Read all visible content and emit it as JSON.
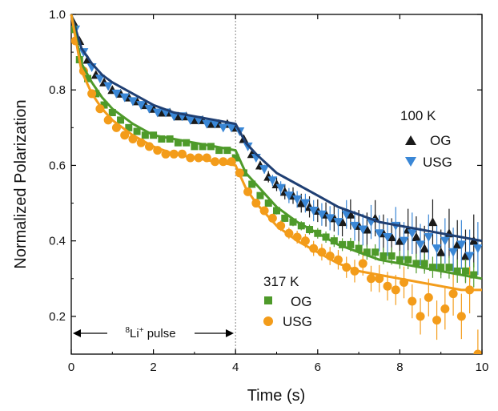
{
  "chart_data": {
    "type": "scatter",
    "xlabel": "Time (s)",
    "ylabel": "Normalized Polarization",
    "xlim": [
      0,
      10
    ],
    "ylim": [
      0.1,
      1.0
    ],
    "x_ticks": [
      "0",
      "2",
      "4",
      "6",
      "8",
      "10"
    ],
    "y_ticks": [
      "0.2",
      "0.4",
      "0.6",
      "0.8",
      "1.0"
    ],
    "grid": false,
    "pulse_end": 4,
    "pulse_label": "Li",
    "pulse_label_pre": "8",
    "pulse_label_sup": "+",
    "pulse_label_post": " pulse",
    "groups": [
      {
        "label": "100 K",
        "placement": "upper-right"
      },
      {
        "label": "317 K",
        "placement": "lower-middle"
      }
    ],
    "series": [
      {
        "name": "OG",
        "group": "100 K",
        "marker": "triangle-up",
        "color": "#1a1a1a",
        "x": [
          0.05,
          0.2,
          0.4,
          0.6,
          0.8,
          1.0,
          1.2,
          1.4,
          1.6,
          1.8,
          2.0,
          2.2,
          2.4,
          2.6,
          2.8,
          3.0,
          3.2,
          3.4,
          3.6,
          3.8,
          4.0,
          4.2,
          4.4,
          4.6,
          4.8,
          5.0,
          5.2,
          5.4,
          5.6,
          5.8,
          6.0,
          6.2,
          6.4,
          6.6,
          6.8,
          7.0,
          7.2,
          7.4,
          7.6,
          7.8,
          8.0,
          8.2,
          8.4,
          8.6,
          8.8,
          9.0,
          9.2,
          9.4,
          9.6,
          9.8
        ],
        "y": [
          0.98,
          0.93,
          0.88,
          0.84,
          0.82,
          0.8,
          0.79,
          0.78,
          0.77,
          0.76,
          0.75,
          0.74,
          0.74,
          0.73,
          0.73,
          0.72,
          0.72,
          0.71,
          0.71,
          0.71,
          0.7,
          0.67,
          0.63,
          0.6,
          0.57,
          0.55,
          0.53,
          0.52,
          0.5,
          0.49,
          0.48,
          0.47,
          0.46,
          0.45,
          0.47,
          0.44,
          0.43,
          0.46,
          0.42,
          0.41,
          0.4,
          0.43,
          0.41,
          0.38,
          0.45,
          0.37,
          0.42,
          0.39,
          0.36,
          0.4
        ],
        "err": [
          0.005,
          0.005,
          0.005,
          0.005,
          0.005,
          0.005,
          0.005,
          0.005,
          0.005,
          0.005,
          0.005,
          0.005,
          0.005,
          0.005,
          0.005,
          0.005,
          0.005,
          0.005,
          0.005,
          0.005,
          0.01,
          0.01,
          0.01,
          0.012,
          0.015,
          0.018,
          0.02,
          0.022,
          0.025,
          0.028,
          0.03,
          0.032,
          0.035,
          0.038,
          0.04,
          0.042,
          0.045,
          0.048,
          0.05,
          0.05,
          0.05,
          0.055,
          0.055,
          0.06,
          0.06,
          0.06,
          0.065,
          0.065,
          0.07,
          0.07
        ]
      },
      {
        "name": "USG",
        "group": "100 K",
        "marker": "triangle-down",
        "color": "#3a87d6",
        "x": [
          0.1,
          0.3,
          0.5,
          0.7,
          0.9,
          1.1,
          1.3,
          1.5,
          1.7,
          1.9,
          2.1,
          2.3,
          2.5,
          2.7,
          2.9,
          3.1,
          3.3,
          3.5,
          3.7,
          3.9,
          4.1,
          4.3,
          4.5,
          4.7,
          4.9,
          5.1,
          5.3,
          5.5,
          5.7,
          5.9,
          6.1,
          6.3,
          6.5,
          6.7,
          6.9,
          7.1,
          7.3,
          7.5,
          7.7,
          7.9,
          8.1,
          8.3,
          8.5,
          8.7,
          8.9,
          9.1,
          9.3,
          9.5,
          9.7,
          9.9
        ],
        "y": [
          0.96,
          0.9,
          0.86,
          0.83,
          0.81,
          0.79,
          0.78,
          0.77,
          0.76,
          0.75,
          0.74,
          0.74,
          0.73,
          0.73,
          0.72,
          0.72,
          0.71,
          0.71,
          0.7,
          0.7,
          0.69,
          0.65,
          0.62,
          0.59,
          0.56,
          0.54,
          0.52,
          0.51,
          0.5,
          0.48,
          0.47,
          0.46,
          0.45,
          0.47,
          0.44,
          0.43,
          0.45,
          0.42,
          0.41,
          0.44,
          0.4,
          0.42,
          0.39,
          0.41,
          0.38,
          0.4,
          0.37,
          0.39,
          0.36,
          0.38
        ],
        "err": [
          0.005,
          0.005,
          0.005,
          0.005,
          0.005,
          0.005,
          0.005,
          0.005,
          0.005,
          0.005,
          0.005,
          0.005,
          0.005,
          0.005,
          0.005,
          0.005,
          0.005,
          0.005,
          0.005,
          0.005,
          0.01,
          0.01,
          0.01,
          0.012,
          0.015,
          0.018,
          0.02,
          0.022,
          0.025,
          0.028,
          0.03,
          0.032,
          0.035,
          0.038,
          0.04,
          0.042,
          0.045,
          0.048,
          0.05,
          0.05,
          0.05,
          0.055,
          0.055,
          0.06,
          0.06,
          0.06,
          0.065,
          0.065,
          0.07,
          0.07
        ]
      },
      {
        "name": "OG",
        "group": "317 K",
        "marker": "square",
        "color": "#4e9a2a",
        "x": [
          0.05,
          0.2,
          0.4,
          0.6,
          0.8,
          1.0,
          1.2,
          1.4,
          1.6,
          1.8,
          2.0,
          2.2,
          2.4,
          2.6,
          2.8,
          3.0,
          3.2,
          3.4,
          3.6,
          3.8,
          4.0,
          4.2,
          4.4,
          4.6,
          4.8,
          5.0,
          5.2,
          5.4,
          5.6,
          5.8,
          6.0,
          6.2,
          6.4,
          6.6,
          6.8,
          7.0,
          7.2,
          7.4,
          7.6,
          7.8,
          8.0,
          8.2,
          8.4,
          8.6,
          8.8,
          9.0,
          9.2,
          9.4,
          9.6,
          9.8
        ],
        "y": [
          0.96,
          0.88,
          0.83,
          0.79,
          0.76,
          0.74,
          0.72,
          0.7,
          0.69,
          0.68,
          0.68,
          0.67,
          0.67,
          0.66,
          0.66,
          0.65,
          0.65,
          0.65,
          0.64,
          0.64,
          0.62,
          0.58,
          0.55,
          0.52,
          0.5,
          0.48,
          0.46,
          0.45,
          0.44,
          0.43,
          0.42,
          0.41,
          0.4,
          0.39,
          0.39,
          0.38,
          0.37,
          0.37,
          0.36,
          0.36,
          0.35,
          0.35,
          0.34,
          0.34,
          0.33,
          0.33,
          0.33,
          0.32,
          0.32,
          0.31
        ],
        "err": [
          0.004,
          0.004,
          0.004,
          0.004,
          0.004,
          0.004,
          0.004,
          0.004,
          0.004,
          0.004,
          0.004,
          0.004,
          0.004,
          0.004,
          0.004,
          0.004,
          0.004,
          0.004,
          0.004,
          0.004,
          0.006,
          0.006,
          0.007,
          0.008,
          0.009,
          0.01,
          0.01,
          0.011,
          0.012,
          0.013,
          0.014,
          0.015,
          0.016,
          0.017,
          0.018,
          0.019,
          0.02,
          0.021,
          0.022,
          0.023,
          0.024,
          0.025,
          0.026,
          0.027,
          0.028,
          0.029,
          0.03,
          0.031,
          0.032,
          0.033
        ]
      },
      {
        "name": "USG",
        "group": "317 K",
        "marker": "circle",
        "color": "#f39c1a",
        "x": [
          0.1,
          0.3,
          0.5,
          0.7,
          0.9,
          1.1,
          1.3,
          1.5,
          1.7,
          1.9,
          2.1,
          2.3,
          2.5,
          2.7,
          2.9,
          3.1,
          3.3,
          3.5,
          3.7,
          3.9,
          4.1,
          4.3,
          4.5,
          4.7,
          4.9,
          5.1,
          5.3,
          5.5,
          5.7,
          5.9,
          6.1,
          6.3,
          6.5,
          6.7,
          6.9,
          7.1,
          7.3,
          7.5,
          7.7,
          7.9,
          8.1,
          8.3,
          8.5,
          8.7,
          8.9,
          9.1,
          9.3,
          9.5,
          9.7,
          9.9
        ],
        "y": [
          0.93,
          0.85,
          0.79,
          0.75,
          0.72,
          0.7,
          0.68,
          0.67,
          0.66,
          0.65,
          0.64,
          0.63,
          0.63,
          0.63,
          0.62,
          0.62,
          0.62,
          0.61,
          0.61,
          0.61,
          0.58,
          0.53,
          0.5,
          0.48,
          0.46,
          0.44,
          0.42,
          0.41,
          0.4,
          0.38,
          0.37,
          0.36,
          0.35,
          0.33,
          0.32,
          0.34,
          0.3,
          0.3,
          0.28,
          0.27,
          0.29,
          0.24,
          0.2,
          0.25,
          0.19,
          0.22,
          0.26,
          0.2,
          0.27,
          0.1
        ],
        "err": [
          0.005,
          0.005,
          0.005,
          0.005,
          0.005,
          0.005,
          0.005,
          0.005,
          0.005,
          0.005,
          0.005,
          0.005,
          0.005,
          0.005,
          0.005,
          0.005,
          0.005,
          0.005,
          0.005,
          0.005,
          0.008,
          0.009,
          0.01,
          0.011,
          0.012,
          0.014,
          0.015,
          0.017,
          0.018,
          0.02,
          0.022,
          0.024,
          0.026,
          0.028,
          0.03,
          0.032,
          0.034,
          0.036,
          0.038,
          0.04,
          0.042,
          0.045,
          0.048,
          0.05,
          0.052,
          0.055,
          0.058,
          0.06,
          0.062,
          0.065
        ]
      }
    ],
    "fits": [
      {
        "group": "100 K",
        "color": "#1f3f73",
        "x": [
          0,
          0.25,
          0.5,
          0.75,
          1,
          1.5,
          2,
          2.5,
          3,
          3.5,
          4,
          4.25,
          4.5,
          5,
          5.5,
          6,
          6.5,
          7,
          7.5,
          8,
          8.5,
          9,
          9.5,
          10
        ],
        "y": [
          1.0,
          0.91,
          0.87,
          0.84,
          0.82,
          0.79,
          0.76,
          0.74,
          0.73,
          0.72,
          0.71,
          0.66,
          0.63,
          0.58,
          0.55,
          0.52,
          0.49,
          0.47,
          0.45,
          0.44,
          0.43,
          0.42,
          0.41,
          0.4
        ]
      },
      {
        "group": "317 K",
        "color": "#4e9a2a",
        "x": [
          0,
          0.25,
          0.5,
          0.75,
          1,
          1.5,
          2,
          2.5,
          3,
          3.5,
          4,
          4.25,
          4.5,
          5,
          5.5,
          6,
          6.5,
          7,
          7.5,
          8,
          8.5,
          9,
          9.5,
          10
        ],
        "y": [
          1.0,
          0.87,
          0.82,
          0.78,
          0.75,
          0.71,
          0.68,
          0.67,
          0.66,
          0.65,
          0.64,
          0.58,
          0.55,
          0.49,
          0.45,
          0.42,
          0.39,
          0.37,
          0.35,
          0.34,
          0.33,
          0.32,
          0.31,
          0.3
        ]
      },
      {
        "group": "317 K",
        "color": "#f39c1a",
        "x": [
          0,
          0.25,
          0.5,
          0.75,
          1,
          1.5,
          2,
          2.5,
          3,
          3.5,
          4,
          4.25,
          4.5,
          5,
          5.5,
          6,
          6.5,
          7,
          7.5,
          8,
          8.5,
          9,
          9.5,
          10
        ],
        "y": [
          1.0,
          0.85,
          0.79,
          0.75,
          0.72,
          0.68,
          0.65,
          0.63,
          0.62,
          0.61,
          0.6,
          0.54,
          0.5,
          0.44,
          0.4,
          0.37,
          0.34,
          0.32,
          0.31,
          0.3,
          0.29,
          0.28,
          0.27,
          0.27
        ]
      }
    ]
  }
}
